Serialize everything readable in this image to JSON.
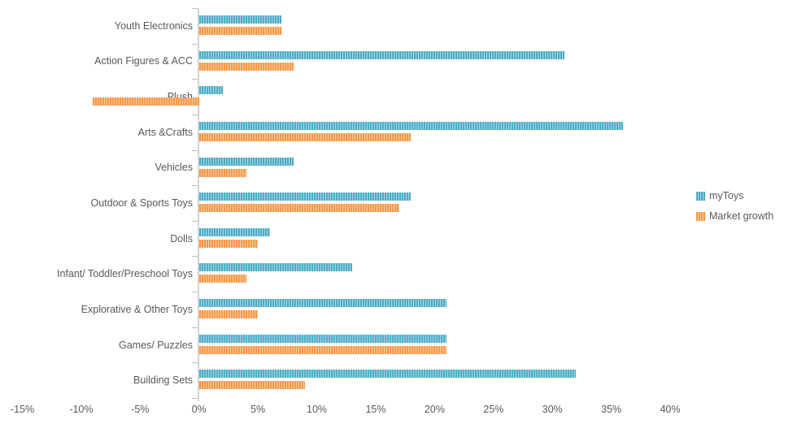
{
  "chart_data": {
    "type": "bar",
    "orientation": "horizontal",
    "title": "",
    "xlabel": "",
    "ylabel": "",
    "unit": "%",
    "grid": false,
    "legend_position": "right",
    "xlim": [
      -15,
      40
    ],
    "x_ticks": [
      "-15%",
      "-10%",
      "-5%",
      "0%",
      "5%",
      "10%",
      "15%",
      "20%",
      "25%",
      "30%",
      "35%",
      "40%"
    ],
    "categories": [
      "Youth Electronics",
      "Action Figures & ACC",
      "Plush",
      "Arts &Crafts",
      "Vehicles",
      "Outdoor & Sports Toys",
      "Dolls",
      "Infant/ Toddler/Preschool Toys",
      "Explorative & Other Toys",
      "Games/ Puzzles",
      "Building Sets"
    ],
    "series": [
      {
        "name": "myToys",
        "color": "#4BACC6",
        "color_light": "#ABD7E4",
        "values": [
          7,
          31,
          2,
          36,
          8,
          18,
          6,
          13,
          21,
          21,
          32
        ]
      },
      {
        "name": "Market growth",
        "color": "#F79646",
        "color_light": "#FBD0A4",
        "values": [
          7,
          8,
          -9,
          18,
          4,
          17,
          5,
          4,
          5,
          21,
          9
        ]
      }
    ],
    "colors": {
      "axis": "#D3D3D3",
      "tick": "#BFBFBF",
      "text": "#595959"
    }
  }
}
